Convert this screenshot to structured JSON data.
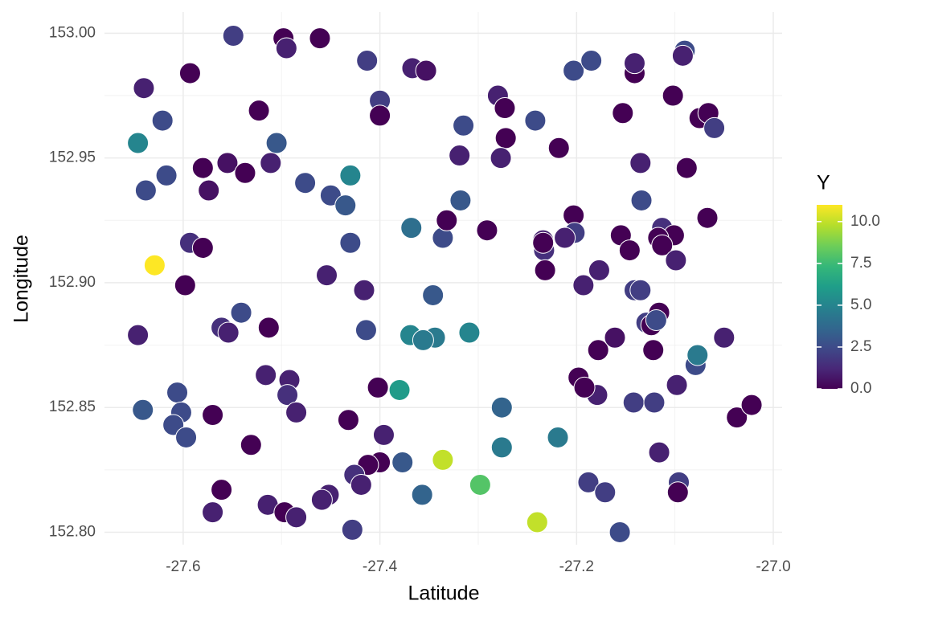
{
  "chart_data": {
    "type": "scatter",
    "x_label": "Latitude",
    "y_label": "Longitude",
    "xlim": [
      -27.68,
      -26.991
    ],
    "ylim": [
      152.795,
      153.0085
    ],
    "xticks": [
      -27.6,
      -27.4,
      -27.2,
      {
        "value": -27.0,
        "label": "-27.0"
      }
    ],
    "yticks": [
      {
        "value": 152.8,
        "label": "152.80"
      },
      {
        "value": 152.85,
        "label": "152.85"
      },
      {
        "value": 152.9,
        "label": "152.90"
      },
      {
        "value": 152.95,
        "label": "152.95"
      },
      {
        "value": 153.0,
        "label": "153.00"
      }
    ],
    "grid": true,
    "colorbar": {
      "title": "Y",
      "lim": [
        0,
        11
      ],
      "ticks": [
        {
          "value": 0,
          "label": "0.0"
        },
        {
          "value": 2.5,
          "label": "2.5"
        },
        {
          "value": 5,
          "label": "5.0"
        },
        {
          "value": 7.5,
          "label": "7.5"
        },
        {
          "value": 10,
          "label": "10.0"
        }
      ],
      "colormap": [
        "#440154",
        "#482878",
        "#3e4a89",
        "#31688e",
        "#26828e",
        "#1f9e89",
        "#35b779",
        "#6ece58",
        "#b5de2b",
        "#fde725"
      ]
    },
    "x": [
      -27.549,
      -27.498,
      -27.461,
      -27.495,
      -27.593,
      -27.64,
      -27.413,
      -27.367,
      -27.353,
      -27.4,
      -27.4,
      -27.523,
      -27.621,
      -27.646,
      -27.505,
      -27.555,
      -27.58,
      -27.537,
      -27.511,
      -27.617,
      -27.638,
      -27.574,
      -27.476,
      -27.43,
      -27.45,
      -27.435,
      -27.43,
      -27.593,
      -27.58,
      -27.629,
      -27.598,
      -27.454,
      -27.416,
      -27.541,
      -27.561,
      -27.554,
      -27.513,
      -27.646,
      -27.414,
      -27.516,
      -27.492,
      -27.494,
      -27.485,
      -27.606,
      -27.602,
      -27.641,
      -27.61,
      -27.597,
      -27.57,
      -27.531,
      -27.432,
      -27.402,
      -27.38,
      -27.396,
      -27.4,
      -27.412,
      -27.426,
      -27.419,
      -27.377,
      -27.336,
      -27.298,
      -27.357,
      -27.452,
      -27.459,
      -27.561,
      -27.57,
      -27.514,
      -27.497,
      -27.485,
      -27.428,
      -27.24,
      -27.156,
      -27.276,
      -27.219,
      -27.276,
      -27.188,
      -27.171,
      -27.116,
      -27.096,
      -27.097,
      -27.037,
      -27.022,
      -27.142,
      -27.121,
      -27.098,
      -27.179,
      -27.198,
      -27.192,
      -27.178,
      -27.161,
      -27.122,
      -27.129,
      -27.124,
      -27.116,
      -27.079,
      -27.077,
      -27.05,
      -27.346,
      -27.369,
      -27.344,
      -27.356,
      -27.309,
      -27.368,
      -27.336,
      -27.332,
      -27.318,
      -27.291,
      -27.319,
      -27.315,
      -27.28,
      -27.273,
      -27.272,
      -27.277,
      -27.242,
      -27.218,
      -27.203,
      -27.185,
      -27.141,
      -27.141,
      -27.153,
      -27.102,
      -27.09,
      -27.092,
      -27.075,
      -27.066,
      -27.06,
      -27.135,
      -27.088,
      -27.134,
      -27.067,
      -27.203,
      -27.202,
      -27.212,
      -27.234,
      -27.233,
      -27.232,
      -27.234,
      -27.177,
      -27.193,
      -27.155,
      -27.146,
      -27.113,
      -27.101,
      -27.117,
      -27.113,
      -27.099,
      -27.141,
      -27.135,
      -27.119
    ],
    "y": [
      152.999,
      152.998,
      152.998,
      152.994,
      152.984,
      152.978,
      152.989,
      152.986,
      152.985,
      152.973,
      152.967,
      152.969,
      152.965,
      152.956,
      152.956,
      152.948,
      152.946,
      152.944,
      152.948,
      152.943,
      152.937,
      152.937,
      152.94,
      152.943,
      152.935,
      152.931,
      152.916,
      152.916,
      152.914,
      152.907,
      152.899,
      152.903,
      152.897,
      152.888,
      152.882,
      152.88,
      152.882,
      152.879,
      152.881,
      152.863,
      152.861,
      152.855,
      152.848,
      152.856,
      152.848,
      152.849,
      152.843,
      152.838,
      152.847,
      152.835,
      152.845,
      152.858,
      152.857,
      152.839,
      152.828,
      152.827,
      152.823,
      152.819,
      152.828,
      152.829,
      152.819,
      152.815,
      152.815,
      152.813,
      152.817,
      152.808,
      152.811,
      152.808,
      152.806,
      152.801,
      152.804,
      152.8,
      152.834,
      152.838,
      152.85,
      152.82,
      152.816,
      152.832,
      152.82,
      152.816,
      152.846,
      152.851,
      152.852,
      152.852,
      152.859,
      152.855,
      152.862,
      152.858,
      152.873,
      152.878,
      152.873,
      152.884,
      152.883,
      152.888,
      152.867,
      152.871,
      152.878,
      152.895,
      152.879,
      152.878,
      152.877,
      152.88,
      152.922,
      152.918,
      152.925,
      152.933,
      152.921,
      152.951,
      152.963,
      152.975,
      152.97,
      152.958,
      152.95,
      152.965,
      152.954,
      152.985,
      152.989,
      152.984,
      152.988,
      152.968,
      152.975,
      152.993,
      152.991,
      152.966,
      152.968,
      152.962,
      152.948,
      152.946,
      152.933,
      152.926,
      152.927,
      152.92,
      152.918,
      152.917,
      152.913,
      152.905,
      152.916,
      152.905,
      152.899,
      152.919,
      152.913,
      152.922,
      152.919,
      152.918,
      152.915,
      152.909,
      152.897,
      152.897,
      152.885
    ],
    "color_values": [
      2,
      0,
      0,
      1,
      0,
      1,
      2,
      1,
      0.5,
      2,
      0,
      0,
      2.5,
      5,
      3,
      0.5,
      0,
      0,
      1,
      2.5,
      2.5,
      0.5,
      2.5,
      5,
      2.5,
      3,
      2.5,
      1.5,
      0,
      11,
      0,
      1,
      1,
      2.5,
      1.5,
      1,
      0,
      1,
      2.5,
      1,
      1,
      1.5,
      1,
      2.5,
      2.5,
      3,
      2.5,
      2.5,
      0,
      0,
      0,
      0,
      6,
      1,
      0,
      0,
      1.5,
      1,
      3,
      10,
      8,
      3.5,
      1,
      1,
      0,
      1,
      1,
      0,
      1,
      2,
      10,
      2.5,
      4.5,
      4.5,
      3.5,
      2,
      2,
      1,
      2,
      0,
      0,
      0,
      2,
      2,
      1,
      1,
      0,
      0,
      0,
      0.5,
      0,
      2,
      0,
      0,
      2.5,
      4.5,
      1,
      3,
      5,
      4.5,
      4.5,
      5,
      4,
      2.5,
      0,
      3,
      0,
      1,
      2.5,
      1,
      0,
      0,
      1,
      2.5,
      0,
      2.5,
      2.5,
      0,
      1,
      0,
      0,
      2.5,
      1,
      0,
      0,
      2,
      1,
      0,
      2.5,
      0,
      0,
      2,
      1,
      1,
      1.5,
      0,
      0,
      1,
      1,
      0,
      0,
      1.5,
      0,
      0,
      0,
      1,
      2,
      2,
      2.5
    ]
  }
}
